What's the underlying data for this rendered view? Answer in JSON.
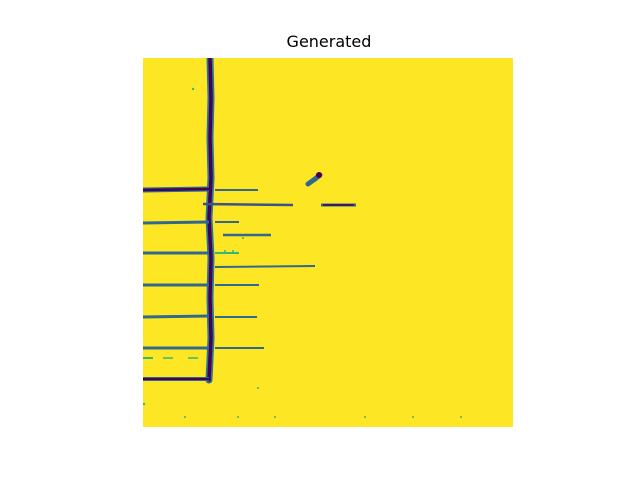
{
  "figure": {
    "title": "Generated"
  },
  "image": {
    "colormap": "viridis",
    "background_color": "#fde725",
    "stroke_dark_color": "#440154",
    "stroke_mid_color": "#31688e",
    "stroke_light_color": "#35b779"
  }
}
